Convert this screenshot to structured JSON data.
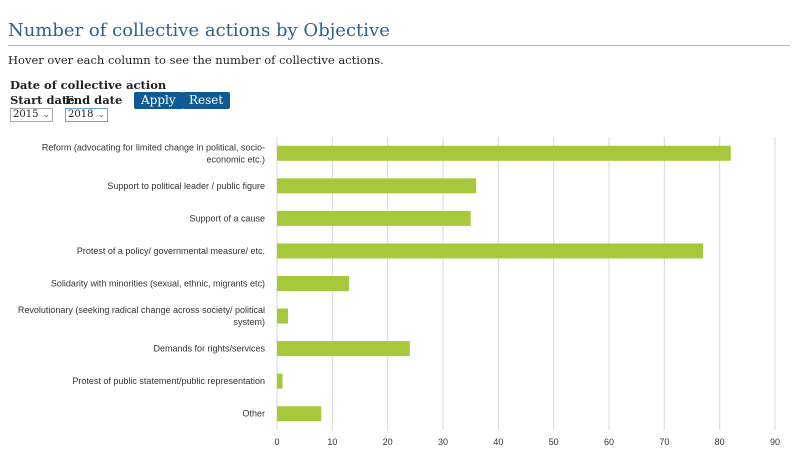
{
  "page": {
    "title": "Number of collective actions by Objective",
    "subtitle": "Hover over each column to see the number of collective actions."
  },
  "filters": {
    "heading": "Date of collective action",
    "start_label": "Start date",
    "end_label": "End date",
    "start_value": "2015",
    "end_value": "2018",
    "apply_label": "Apply",
    "reset_label": "Reset"
  },
  "colors": {
    "bar": "#a5c93a",
    "grid": "#d9d9d9",
    "title": "#2d5f95",
    "button": "#0f5a93"
  },
  "chart_data": {
    "type": "bar",
    "orientation": "horizontal",
    "categories": [
      [
        "Reform (advocating for limited change in political, socio-",
        "economic etc.)"
      ],
      [
        "Support to political leader / public figure"
      ],
      [
        "Support of a cause"
      ],
      [
        "Protest of a policy/ governmental measure/ etc."
      ],
      [
        "Solidarity with minorities (sexual, ethnic, migrants etc)"
      ],
      [
        "Revolutionary (seeking radical change across society/ political",
        "system)"
      ],
      [
        "Demands for rights/services"
      ],
      [
        "Protest of public statement/public representation"
      ],
      [
        "Other"
      ]
    ],
    "values": [
      82,
      36,
      35,
      77,
      13,
      2,
      24,
      1,
      8
    ],
    "xlim": [
      0,
      90
    ],
    "xticks": [
      0,
      10,
      20,
      30,
      40,
      50,
      60,
      70,
      80,
      90
    ],
    "grid": true,
    "legend": "none"
  }
}
